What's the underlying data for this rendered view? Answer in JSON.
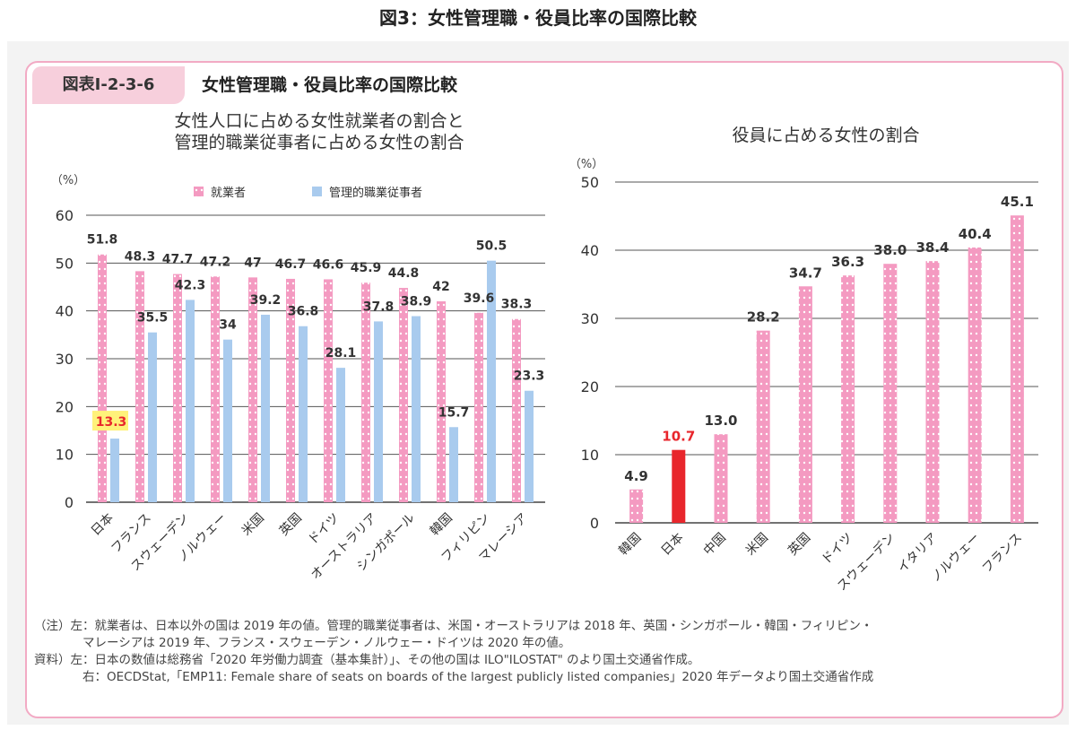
{
  "page_title": "図3：女性管理職・役員比率の国際比較",
  "figure_number": "図表Ⅰ-2-3-6",
  "figure_title": "女性管理職・役員比率の国際比較",
  "notes": [
    "（注）左：就業者は、日本以外の国は 2019 年の値。管理的職業従事者は、米国・オーストラリアは 2018 年、英国・シンガポール・韓国・フィリピン・",
    "マレーシアは 2019 年、フランス・スウェーデン・ノルウェー・ドイツは 2020 年の値。",
    "資料）左：日本の数値は総務省「2020 年労働力調査（基本集計）」、その他の国は ILO\"ILOSTAT\" のより国土交通省作成。",
    "右：OECDStat,「EMP11: Female share of seats on boards of the largest publicly listed companies」2020 年データより国土交通省作成"
  ],
  "colors": {
    "pink": "#f49ac1",
    "blue": "#a9cbee",
    "red": "#e8262c",
    "highlight": "#fff27a",
    "dot": "#ffffff"
  },
  "chart_data": [
    {
      "type": "bar",
      "title_lines": [
        "女性人口に占める女性就業者の割合と",
        "管理的職業従事者に占める女性の割合"
      ],
      "ylabel": "（%）",
      "ylim": [
        0,
        60
      ],
      "yticks": [
        0,
        10,
        20,
        30,
        40,
        50,
        60
      ],
      "grid": true,
      "legend_position": "top",
      "categories": [
        "日本",
        "フランス",
        "スウェーデン",
        "ノルウェー",
        "米国",
        "英国",
        "ドイツ",
        "オーストラリア",
        "シンガポール",
        "韓国",
        "フィリピン",
        "マレーシア"
      ],
      "series": [
        {
          "name": "就業者",
          "values": [
            51.8,
            48.3,
            47.7,
            47.2,
            47,
            46.7,
            46.6,
            45.9,
            44.8,
            42,
            39.6,
            38.3
          ],
          "labels": [
            "51.8",
            "48.3",
            "47.7",
            "47.2",
            "47",
            "46.7",
            "46.6",
            "45.9",
            "44.8",
            "42",
            "39.6",
            "38.3"
          ]
        },
        {
          "name": "管理的職業従事者",
          "values": [
            13.3,
            35.5,
            42.3,
            34,
            39.2,
            36.8,
            28.1,
            37.8,
            38.9,
            15.7,
            50.5,
            23.3
          ],
          "labels": [
            "13.3",
            "35.5",
            "42.3",
            "34",
            "39.2",
            "36.8",
            "28.1",
            "37.8",
            "38.9",
            "15.7",
            "50.5",
            "23.3"
          ]
        }
      ],
      "highlight_category": "日本"
    },
    {
      "type": "bar",
      "title": "役員に占める女性の割合",
      "ylabel": "（%）",
      "ylim": [
        0,
        50
      ],
      "yticks": [
        0,
        10,
        20,
        30,
        40,
        50
      ],
      "grid": true,
      "categories": [
        "韓国",
        "日本",
        "中国",
        "米国",
        "英国",
        "ドイツ",
        "スウェーデン",
        "イタリア",
        "ノルウェー",
        "フランス"
      ],
      "values": [
        4.9,
        10.7,
        13.0,
        28.2,
        34.7,
        36.3,
        38.0,
        38.4,
        40.4,
        45.1
      ],
      "labels": [
        "4.9",
        "10.7",
        "13.0",
        "28.2",
        "34.7",
        "36.3",
        "38.0",
        "38.4",
        "40.4",
        "45.1"
      ],
      "highlight_category": "日本"
    }
  ]
}
